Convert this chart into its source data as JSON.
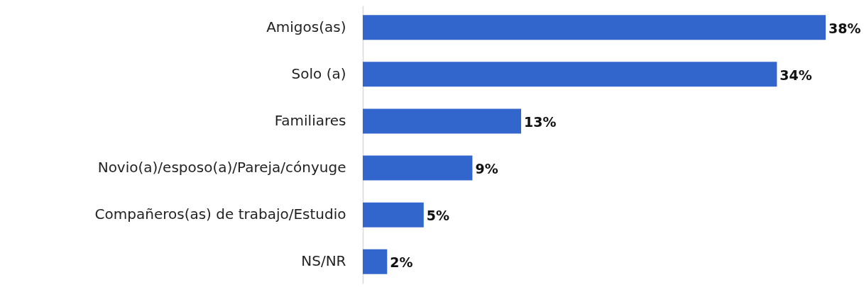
{
  "chart_data": {
    "type": "bar",
    "orientation": "horizontal",
    "categories": [
      "Amigos(as)",
      "Solo (a)",
      "Familiares",
      "Novio(a)/esposo(a)/Pareja/cónyuge",
      "Compañeros(as) de trabajo/Estudio",
      "NS/NR"
    ],
    "values": [
      38,
      34,
      13,
      9,
      5,
      2
    ],
    "value_labels": [
      "38%",
      "34%",
      "13%",
      "9%",
      "5%",
      "2%"
    ],
    "color": "#3366cc"
  }
}
